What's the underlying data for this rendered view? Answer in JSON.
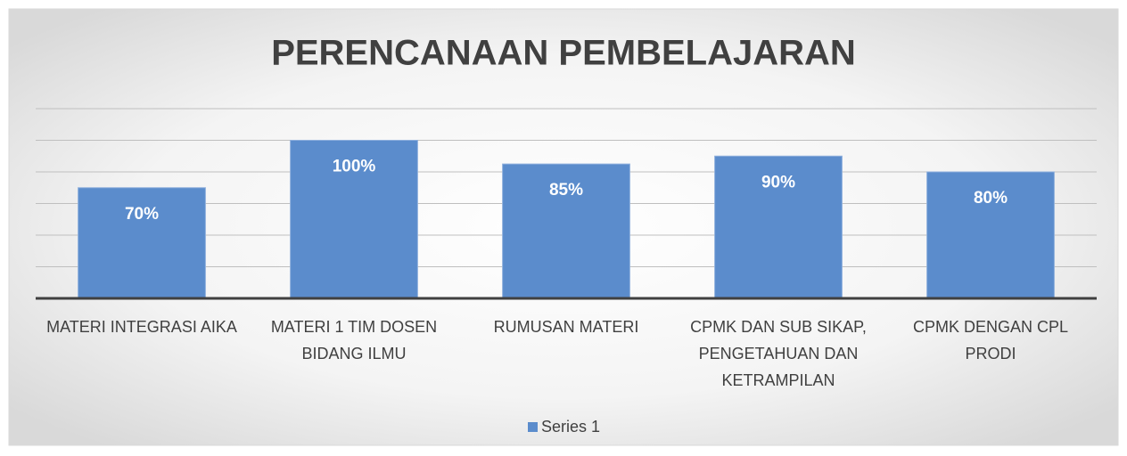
{
  "chart_data": {
    "type": "bar",
    "title": "PERENCANAAN PEMBELAJARAN",
    "categories": [
      "MATERI INTEGRASI AIKA",
      "MATERI 1 TIM DOSEN BIDANG ILMU",
      "RUMUSAN MATERI",
      "CPMK DAN SUB SIKAP, PENGETAHUAN DAN KETRAMPILAN",
      "CPMK DENGAN CPL PRODI"
    ],
    "series": [
      {
        "name": "Series 1",
        "color": "#5b8ccc",
        "values": [
          70,
          100,
          85,
          90,
          80
        ],
        "value_labels": [
          "70%",
          "100%",
          "85%",
          "90%",
          "80%"
        ]
      }
    ],
    "ylim": [
      0,
      120
    ],
    "yticks": [
      0,
      20,
      40,
      60,
      80,
      100,
      120
    ],
    "grid": true,
    "legend": "bottom"
  }
}
